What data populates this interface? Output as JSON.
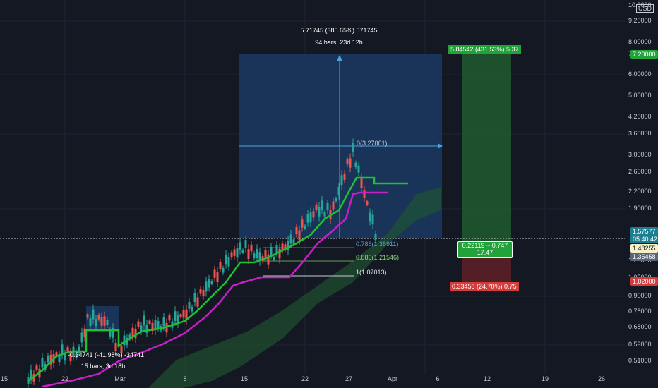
{
  "header": {
    "currency_badge": "USD",
    "price_top": "10.0000"
  },
  "measure": {
    "line1": "5.71745 (385.65%) 571745",
    "line2": "94 bars, 23d 12h"
  },
  "small_measure": {
    "line1": "-0.34741 (-41.98%) -34741",
    "line2": "15 bars, 3d 18h"
  },
  "fib": {
    "level0": "0(3.27001)",
    "level786": "0.786(1.35911)",
    "level886": "0.886(1.21546)",
    "level1": "1(1.07013)"
  },
  "position": {
    "target": "5.84542 (431.53%) 5.37",
    "stop": "0.33458 (24.70%) 0.75",
    "ratio_line1": "0.22119 ~ 0.747",
    "ratio_line2": "17.47"
  },
  "price_axis": [
    "9.20000",
    "8.00000",
    "7.20000",
    "6.00000",
    "5.00000",
    "4.20000",
    "3.60000",
    "3.00000",
    "2.60000",
    "2.20000",
    "1.90000",
    "1.20000",
    "1.05000",
    "0.90000",
    "0.78000",
    "0.68000",
    "0.59000",
    "0.51000"
  ],
  "price_tags": {
    "current": "1.57577",
    "countdown": "05:40:42",
    "level_a": "1.48255",
    "level_b": "1.35458",
    "target_price": "7.20000",
    "stop_price": "1.02000"
  },
  "time_axis": [
    "15",
    "22",
    "Mar",
    "8",
    "15",
    "22",
    "27",
    "Apr",
    "6",
    "12",
    "19",
    "26"
  ],
  "colors": {
    "background": "#141823",
    "green_line": "#21c034",
    "magenta_line": "#c81fc8",
    "profit_zone": "#1f5a2e",
    "loss_zone": "#5a1f26",
    "measure_box": "#1b3d6b",
    "candle_up": "#26a69a",
    "candle_down": "#ef5350"
  }
}
